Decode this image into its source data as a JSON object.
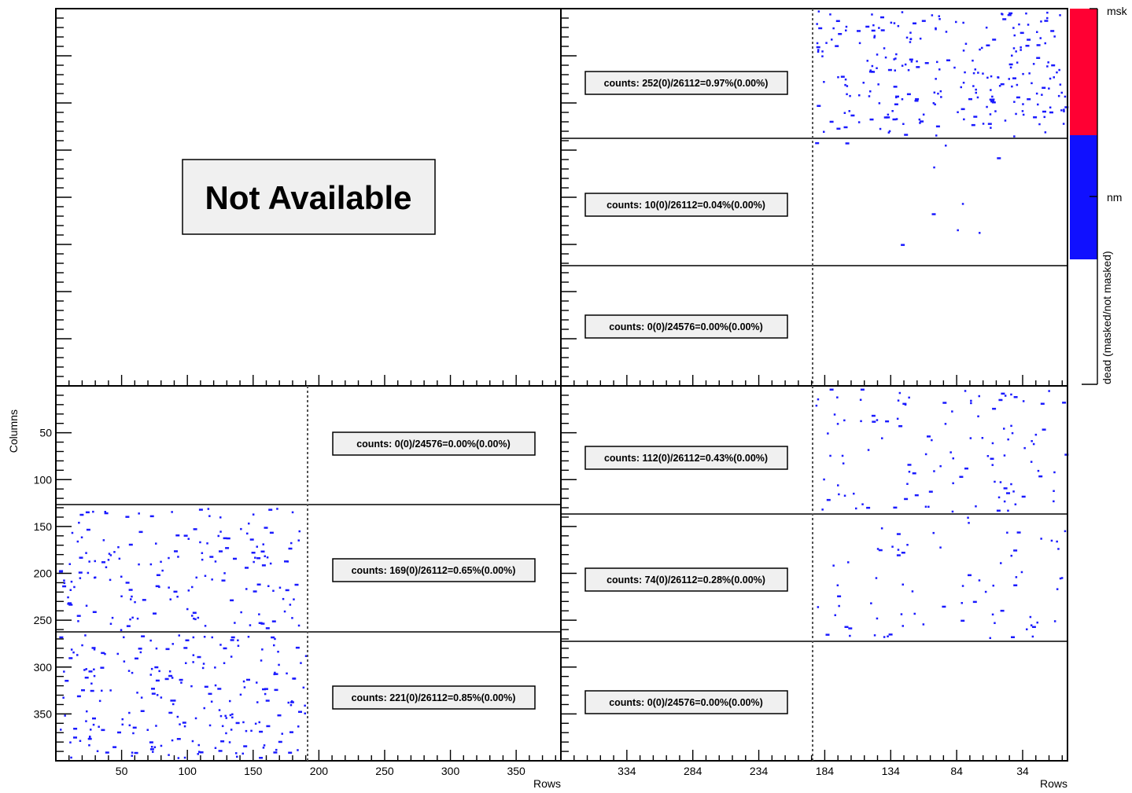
{
  "chart_data": {
    "type": "heatmap",
    "title": "",
    "not_available_text": "Not Available",
    "xlabel_left": "Rows",
    "xlabel_right": "Rows",
    "ylabel": "Columns",
    "x_ticks_left": [
      "50",
      "100",
      "150",
      "200",
      "250",
      "300",
      "350"
    ],
    "x_ticks_right": [
      "334",
      "284",
      "234",
      "184",
      "134",
      "84",
      "34"
    ],
    "y_ticks": [
      "50",
      "100",
      "150",
      "200",
      "250",
      "300",
      "350"
    ],
    "colorbar": {
      "label": "dead (masked/not masked)",
      "levels": [
        {
          "name": "msk",
          "color": "#ff0033"
        },
        {
          "name": "nm",
          "color": "#1010ff"
        }
      ]
    },
    "panels": {
      "top_right": [
        "counts: 252(0)/26112=0.97%(0.00%)",
        "counts: 10(0)/26112=0.04%(0.00%)",
        "counts: 0(0)/24576=0.00%(0.00%)"
      ],
      "bottom_left": [
        "counts: 0(0)/24576=0.00%(0.00%)",
        "counts: 169(0)/26112=0.65%(0.00%)",
        "counts: 221(0)/26112=0.85%(0.00%)"
      ],
      "bottom_right": [
        "counts: 112(0)/26112=0.43%(0.00%)",
        "counts: 74(0)/26112=0.28%(0.00%)",
        "counts: 0(0)/24576=0.00%(0.00%)"
      ]
    },
    "dead_pixel_counts": {
      "top_right": [
        252,
        10,
        0
      ],
      "bottom_left": [
        0,
        169,
        221
      ],
      "bottom_right": [
        112,
        74,
        0
      ]
    }
  }
}
